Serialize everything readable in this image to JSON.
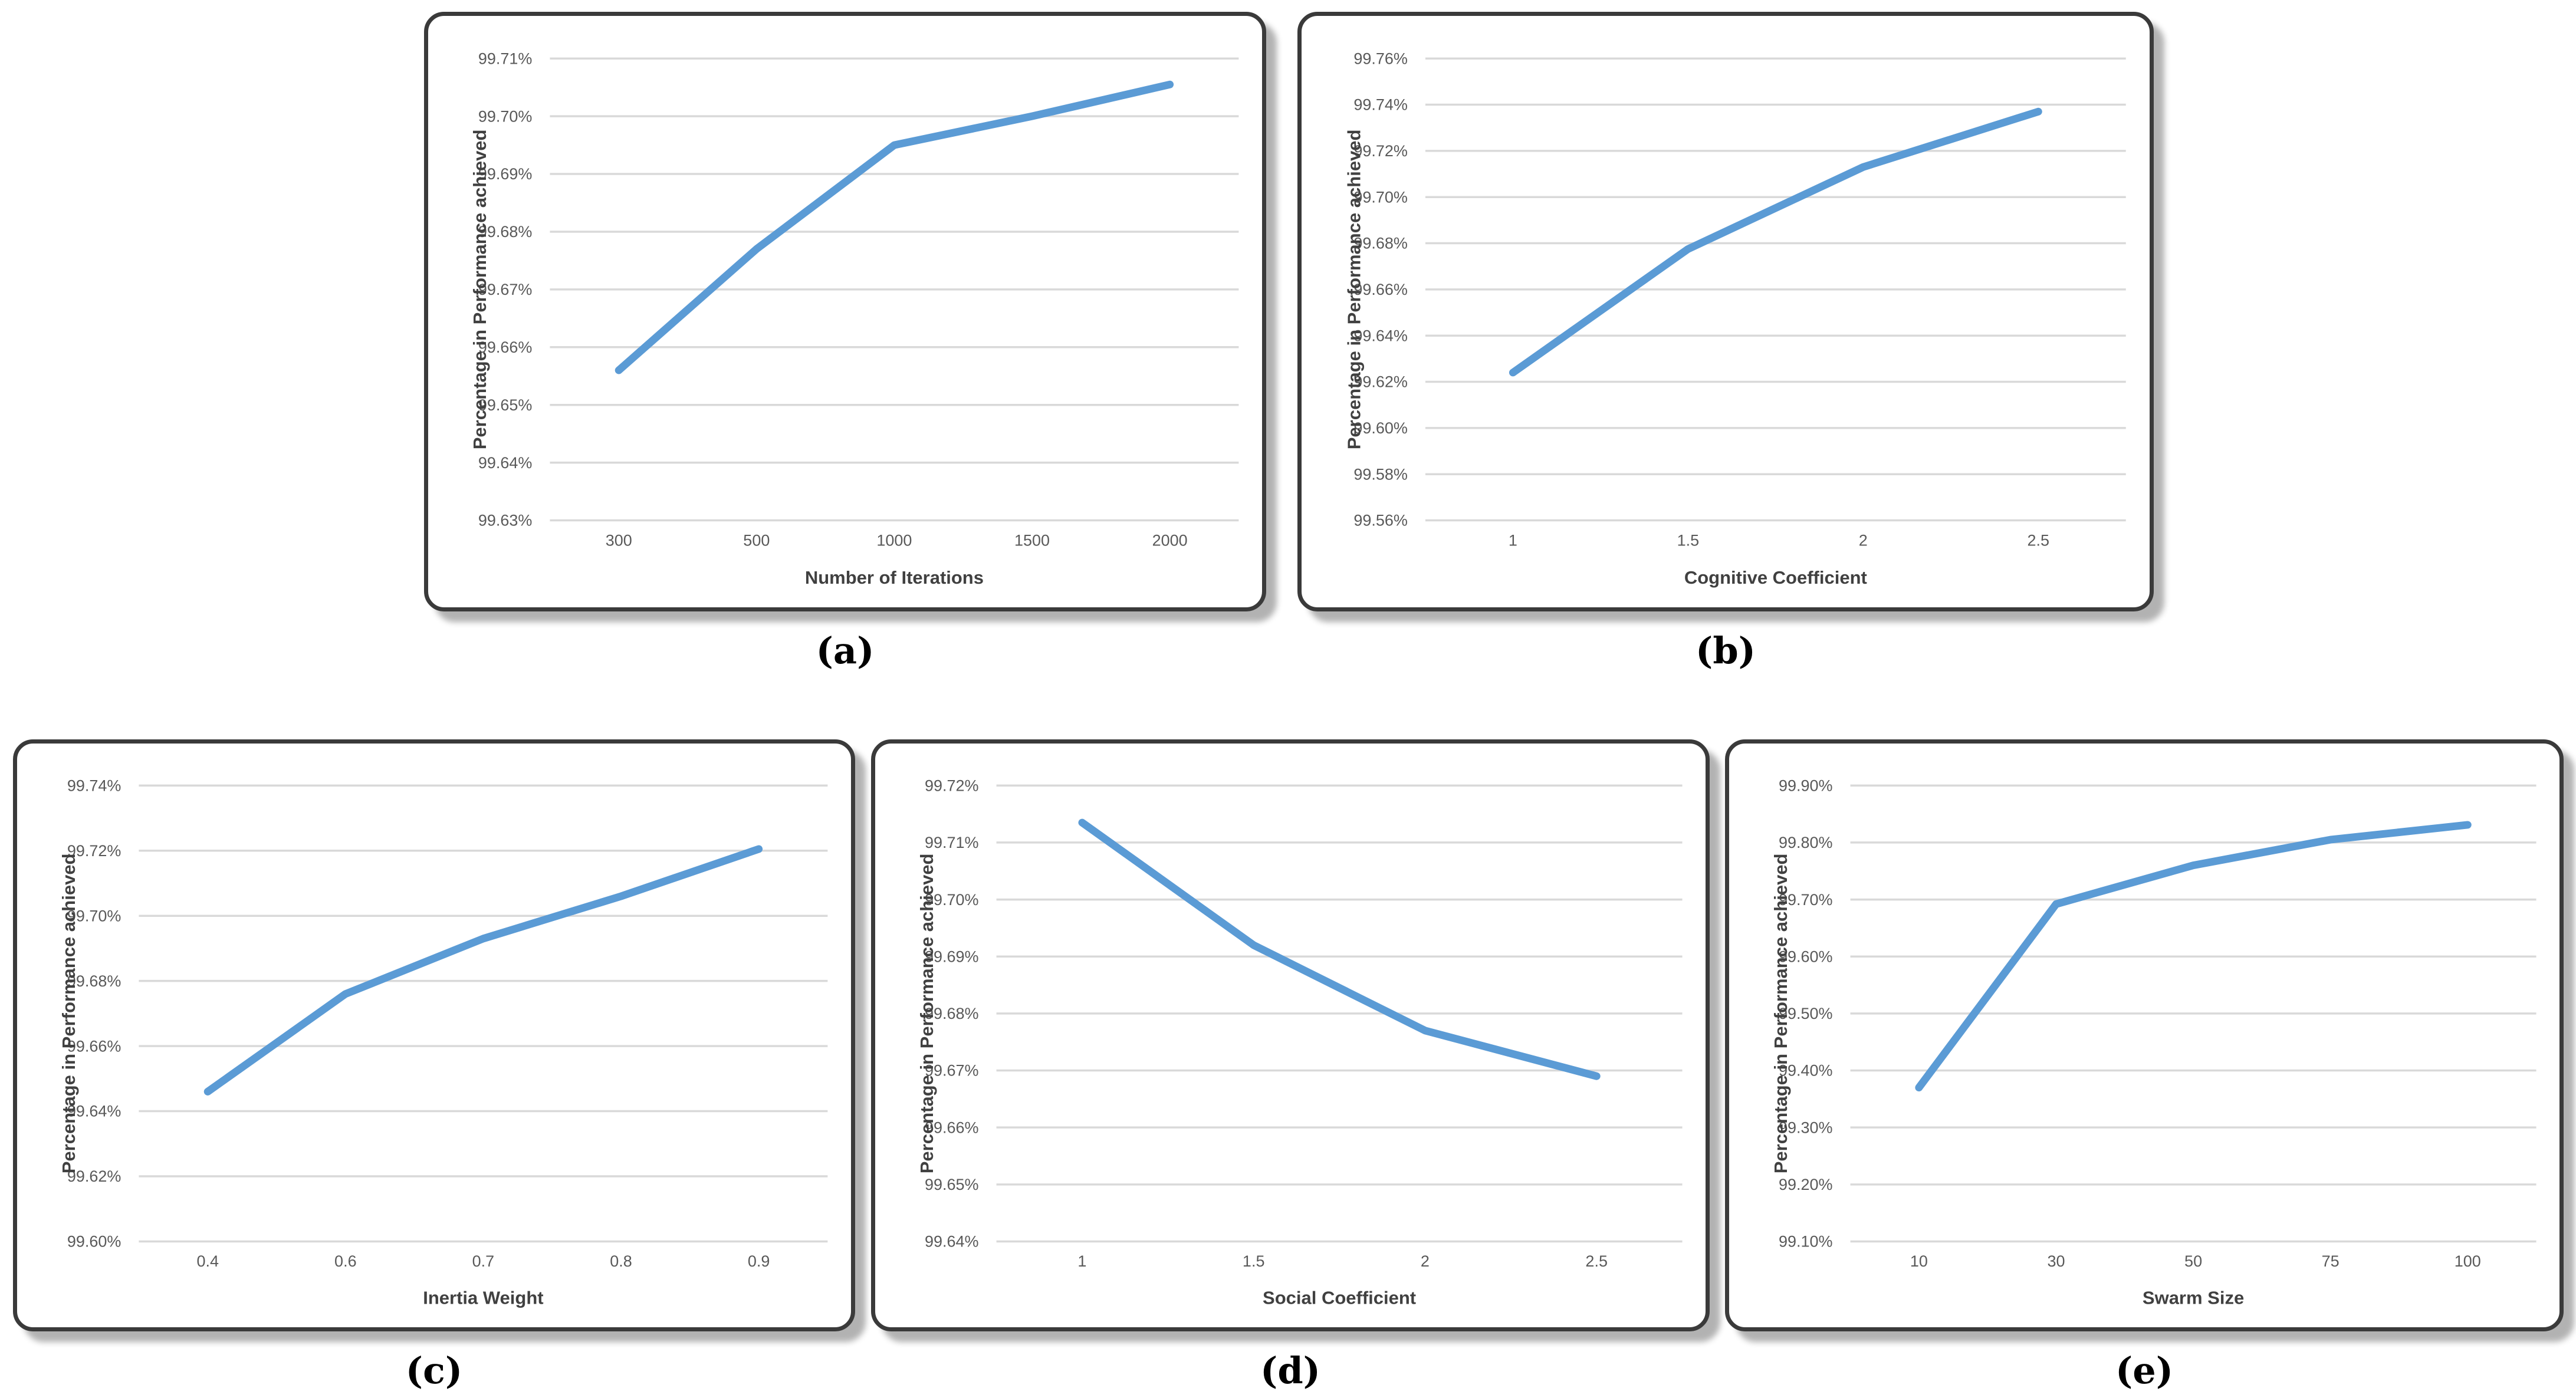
{
  "page": {
    "background": "#ffffff"
  },
  "colors": {
    "line": "#5B9BD5",
    "gridline": "#D9D9D9",
    "tick_text": "#595959",
    "axis_title_text": "#404040",
    "panel_border": "#3a3a3a",
    "caption_text": "#000000"
  },
  "chart_data": [
    {
      "type": "line",
      "caption": "(a)",
      "title": "",
      "xlabel": "Number of Iterations",
      "ylabel": "Percentage in Performance achieved",
      "categories": [
        "300",
        "500",
        "1000",
        "1500",
        "2000"
      ],
      "values": [
        99.656,
        99.677,
        99.695,
        99.7,
        99.7055
      ],
      "ylim": [
        99.63,
        99.71
      ],
      "ystep": 0.01,
      "ytick_suffix": "%",
      "grid": true,
      "legend": "none"
    },
    {
      "type": "line",
      "caption": "(b)",
      "title": "",
      "xlabel": "Cognitive Coefficient",
      "ylabel": "Percentage in Performance achieved",
      "categories": [
        "1",
        "1.5",
        "2",
        "2.5"
      ],
      "values": [
        99.624,
        99.6775,
        99.713,
        99.737
      ],
      "ylim": [
        99.56,
        99.76
      ],
      "ystep": 0.02,
      "ytick_suffix": "%",
      "grid": true,
      "legend": "none"
    },
    {
      "type": "line",
      "caption": "(c)",
      "title": "",
      "xlabel": "Inertia Weight",
      "ylabel": "Percentage in Performance achieved",
      "categories": [
        "0.4",
        "0.6",
        "0.7",
        "0.8",
        "0.9"
      ],
      "values": [
        99.646,
        99.676,
        99.693,
        99.706,
        99.7205
      ],
      "ylim": [
        99.6,
        99.74
      ],
      "ystep": 0.02,
      "ytick_suffix": "%",
      "grid": true,
      "legend": "none"
    },
    {
      "type": "line",
      "caption": "(d)",
      "title": "",
      "xlabel": "Social Coefficient",
      "ylabel": "Percentage in Performance achieved",
      "categories": [
        "1",
        "1.5",
        "2",
        "2.5"
      ],
      "values": [
        99.7135,
        99.692,
        99.677,
        99.669
      ],
      "ylim": [
        99.64,
        99.72
      ],
      "ystep": 0.01,
      "ytick_suffix": "%",
      "grid": true,
      "legend": "none"
    },
    {
      "type": "line",
      "caption": "(e)",
      "title": "",
      "xlabel": "Swarm Size",
      "ylabel": "Percentage in Performance achieved",
      "categories": [
        "10",
        "30",
        "50",
        "75",
        "100"
      ],
      "values": [
        99.37,
        99.692,
        99.76,
        99.805,
        99.831
      ],
      "ylim": [
        99.1,
        99.9
      ],
      "ystep": 0.1,
      "ytick_suffix": "%",
      "grid": true,
      "legend": "none"
    }
  ]
}
